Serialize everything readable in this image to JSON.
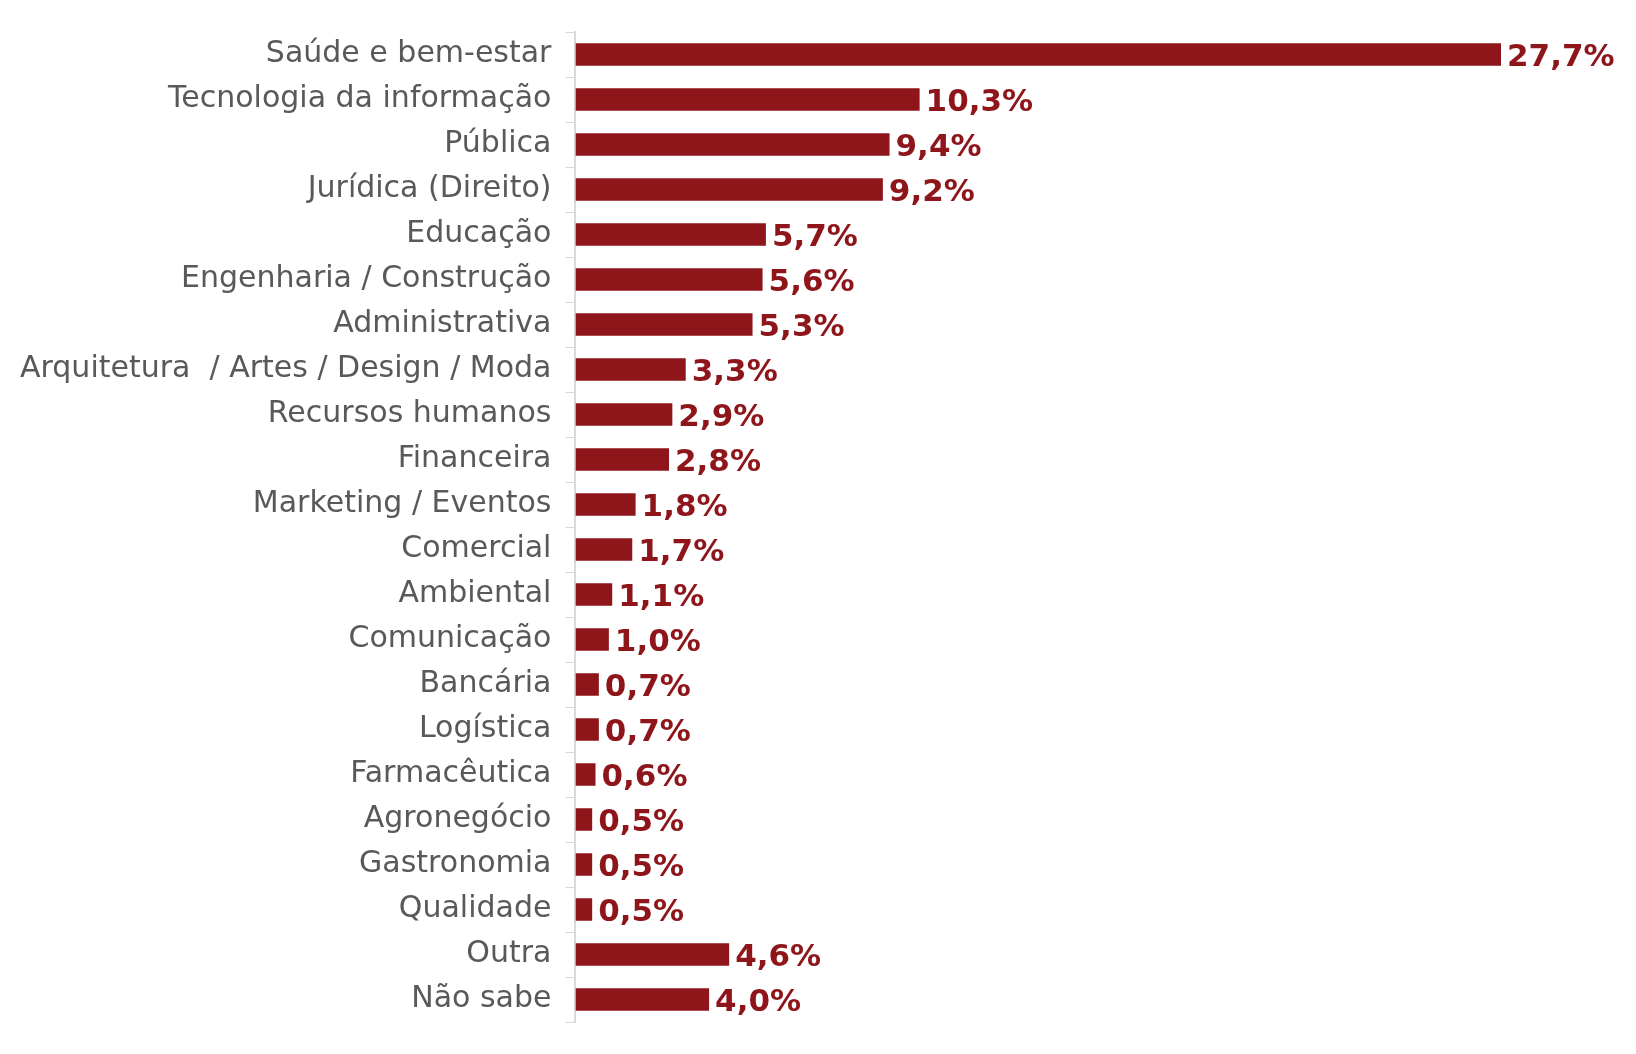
{
  "chart_data": {
    "type": "bar",
    "orientation": "horizontal",
    "tick_labels": "y",
    "categories": [
      "Saúde e bem-estar",
      "Tecnologia da informação",
      "Pública",
      "Jurídica (Direito)",
      "Educação",
      "Engenharia / Construção",
      "Administrativa",
      "Arquitetura  / Artes / Design / Moda",
      "Recursos humanos",
      "Financeira",
      "Marketing / Eventos",
      "Comercial",
      "Ambiental",
      "Comunicação",
      "Bancária",
      "Logística",
      "Farmacêutica",
      "Agronegócio",
      "Gastronomia",
      "Qualidade",
      "Outra",
      "Não sabe"
    ],
    "values": [
      27.7,
      10.3,
      9.4,
      9.2,
      5.7,
      5.6,
      5.3,
      3.3,
      2.9,
      2.8,
      1.8,
      1.7,
      1.1,
      1.0,
      0.7,
      0.7,
      0.6,
      0.5,
      0.5,
      0.5,
      4.6,
      4.0
    ],
    "value_labels": [
      "27,7%",
      "10,3%",
      "9,4%",
      "9,2%",
      "5,7%",
      "5,6%",
      "5,3%",
      "3,3%",
      "2,9%",
      "2,8%",
      "1,8%",
      "1,7%",
      "1,1%",
      "1,0%",
      "0,7%",
      "0,7%",
      "0,6%",
      "0,5%",
      "0,5%",
      "0,5%",
      "4,6%",
      "4,0%"
    ],
    "color": "#8e161b"
  }
}
